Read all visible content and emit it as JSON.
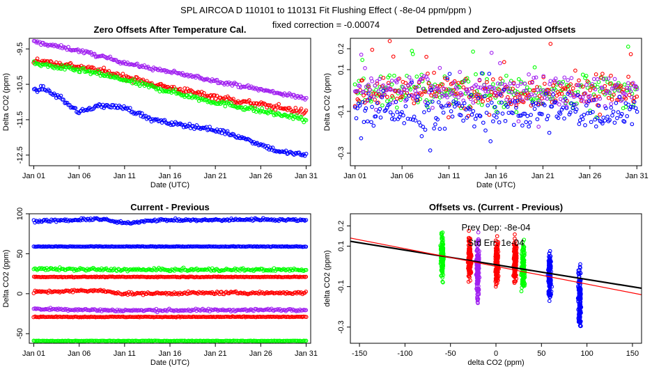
{
  "figure": {
    "title": "SPL   AIRCOA D   110101 to 110131   Fit Flushing Effect ( -8e-04 ppm/ppm )",
    "subtitle": "fixed correction = -0.00074"
  },
  "colors": {
    "blue": "#0000ff",
    "red": "#ff0000",
    "green": "#00ff00",
    "purple": "#a020f0",
    "black": "#000000"
  },
  "chart_data": [
    {
      "id": "p1",
      "type": "scatter",
      "title": "Zero Offsets After Temperature Cal.",
      "xlabel": "Date (UTC)",
      "ylabel": "Delta CO2 (ppm)",
      "xlim": [
        0.5,
        31.5
      ],
      "ylim": [
        -12.8,
        -9.2
      ],
      "xticks": [
        1,
        6,
        11,
        16,
        21,
        26,
        31
      ],
      "xticklabels": [
        "Jan 01",
        "Jan 06",
        "Jan 11",
        "Jan 16",
        "Jan 21",
        "Jan 26",
        "Jan 31"
      ],
      "yticks": [
        -9.5,
        -10.5,
        -11.5,
        -12.5
      ],
      "yticklabels": [
        "-9.5",
        "-10.5",
        "-11.5",
        "-12.5"
      ],
      "series": [
        {
          "color": "purple",
          "x": [
            1,
            3,
            6,
            9,
            12,
            16,
            20,
            24,
            28,
            31
          ],
          "y": [
            -9.3,
            -9.4,
            -9.55,
            -9.75,
            -9.95,
            -10.15,
            -10.35,
            -10.55,
            -10.75,
            -10.9
          ],
          "noise": 0.05
        },
        {
          "color": "red",
          "x": [
            1,
            3,
            6,
            9,
            12,
            16,
            20,
            24,
            28,
            31
          ],
          "y": [
            -9.8,
            -9.9,
            -10.0,
            -10.15,
            -10.35,
            -10.6,
            -10.8,
            -11.0,
            -11.15,
            -11.3
          ],
          "noise": 0.08
        },
        {
          "color": "green",
          "x": [
            1,
            3,
            6,
            9,
            12,
            16,
            20,
            24,
            28,
            31
          ],
          "y": [
            -9.9,
            -10.0,
            -10.1,
            -10.25,
            -10.45,
            -10.7,
            -10.95,
            -11.15,
            -11.35,
            -11.5
          ],
          "noise": 0.07
        },
        {
          "color": "blue",
          "x": [
            1,
            2,
            4,
            6,
            8,
            11,
            14,
            16,
            19,
            22,
            25,
            28,
            31
          ],
          "y": [
            -10.7,
            -10.6,
            -10.9,
            -11.3,
            -11.1,
            -11.15,
            -11.5,
            -11.6,
            -11.7,
            -11.85,
            -12.1,
            -12.4,
            -12.5
          ],
          "noise": 0.06
        }
      ]
    },
    {
      "id": "p2",
      "type": "scatter",
      "title": "Detrended and Zero-adjusted Offsets",
      "xlabel": "Date (UTC)",
      "ylabel": "Delta CO2 (ppm)",
      "xlim": [
        0.5,
        31.5
      ],
      "ylim": [
        -0.36,
        0.25
      ],
      "xticks": [
        1,
        6,
        11,
        16,
        21,
        26,
        31
      ],
      "xticklabels": [
        "Jan 01",
        "Jan 06",
        "Jan 11",
        "Jan 16",
        "Jan 21",
        "Jan 26",
        "Jan 31"
      ],
      "yticks": [
        0.2,
        0.1,
        -0.1,
        -0.3
      ],
      "yticklabels": [
        "0.2",
        "0.1",
        "-0.1",
        "-0.3"
      ],
      "series": [
        {
          "color": "green",
          "x": [
            1,
            31
          ],
          "y": [
            0.0,
            0.0
          ],
          "noise": 0.08
        },
        {
          "color": "red",
          "x": [
            1,
            31
          ],
          "y": [
            0.0,
            0.0
          ],
          "noise": 0.08
        },
        {
          "color": "purple",
          "x": [
            1,
            31
          ],
          "y": [
            0.0,
            0.0
          ],
          "noise": 0.07
        },
        {
          "color": "blue",
          "x": [
            1,
            31
          ],
          "y": [
            -0.1,
            -0.1
          ],
          "noise": 0.09
        }
      ]
    },
    {
      "id": "p3",
      "type": "scatter",
      "title": "Current - Previous",
      "xlabel": "Date (UTC)",
      "ylabel": "Delta CO2 (ppm)",
      "xlim": [
        0.5,
        31.5
      ],
      "ylim": [
        -62,
        100
      ],
      "xticks": [
        1,
        6,
        11,
        16,
        21,
        26,
        31
      ],
      "xticklabels": [
        "Jan 01",
        "Jan 06",
        "Jan 11",
        "Jan 16",
        "Jan 21",
        "Jan 26",
        "Jan 31"
      ],
      "yticks": [
        100,
        50,
        0,
        -50
      ],
      "yticklabels": [
        "100",
        "50",
        "0",
        "-50"
      ],
      "series": [
        {
          "color": "blue",
          "x": [
            1,
            6,
            8,
            11,
            14,
            20,
            26,
            31
          ],
          "y": [
            91,
            92,
            94,
            88,
            92,
            92,
            93,
            92
          ],
          "noise": 1.5
        },
        {
          "color": "blue",
          "x": [
            1,
            31
          ],
          "y": [
            59,
            59
          ],
          "noise": 0.4
        },
        {
          "color": "green",
          "x": [
            1,
            11,
            31
          ],
          "y": [
            31,
            30,
            30
          ],
          "noise": 1.8
        },
        {
          "color": "red",
          "x": [
            1,
            31
          ],
          "y": [
            21,
            21
          ],
          "noise": 0.5
        },
        {
          "color": "red",
          "x": [
            1,
            8,
            11,
            20,
            31
          ],
          "y": [
            2,
            4,
            0,
            1,
            1
          ],
          "noise": 1.6
        },
        {
          "color": "purple",
          "x": [
            1,
            11,
            31
          ],
          "y": [
            -19,
            -21,
            -20
          ],
          "noise": 1.6
        },
        {
          "color": "red",
          "x": [
            1,
            31
          ],
          "y": [
            -29,
            -29
          ],
          "noise": 0.5
        },
        {
          "color": "green",
          "x": [
            1,
            31
          ],
          "y": [
            -59,
            -59
          ],
          "noise": 0.4
        }
      ]
    },
    {
      "id": "p4",
      "type": "scatter",
      "title": "Offsets vs. (Current - Previous)",
      "xlabel": "delta CO2 (ppm)",
      "ylabel": "delta CO2 (ppm)",
      "xlim": [
        -160,
        160
      ],
      "ylim": [
        -0.38,
        0.26
      ],
      "xticks": [
        -150,
        -100,
        -50,
        0,
        50,
        100,
        150
      ],
      "xticklabels": [
        "-150",
        "-100",
        "-50",
        "0",
        "50",
        "100",
        "150"
      ],
      "yticks": [
        0.2,
        0.1,
        -0.1,
        -0.3
      ],
      "yticklabels": [
        "0.2",
        "0.1",
        "-0.1",
        "-0.3"
      ],
      "annotations": [
        "Prev Dep: -8e-04",
        "Std Err: 1e-04"
      ],
      "columns": [
        {
          "color": "green",
          "x": -59,
          "ymin": -0.1,
          "ymax": 0.2
        },
        {
          "color": "red",
          "x": -29,
          "ymin": -0.1,
          "ymax": 0.18
        },
        {
          "color": "purple",
          "x": -20,
          "ymin": -0.22,
          "ymax": 0.18
        },
        {
          "color": "red",
          "x": 1,
          "ymin": -0.12,
          "ymax": 0.16
        },
        {
          "color": "red",
          "x": 21,
          "ymin": -0.12,
          "ymax": 0.17
        },
        {
          "color": "green",
          "x": 30,
          "ymin": -0.15,
          "ymax": 0.14
        },
        {
          "color": "blue",
          "x": 59,
          "ymin": -0.2,
          "ymax": 0.1
        },
        {
          "color": "blue",
          "x": 92,
          "ymin": -0.36,
          "ymax": 0.05
        }
      ],
      "lines": [
        {
          "color": "black",
          "x": [
            -160,
            160
          ],
          "y": [
            0.124,
            -0.108
          ]
        },
        {
          "color": "red",
          "x": [
            -160,
            160
          ],
          "y": [
            0.14,
            -0.14
          ]
        }
      ]
    }
  ]
}
